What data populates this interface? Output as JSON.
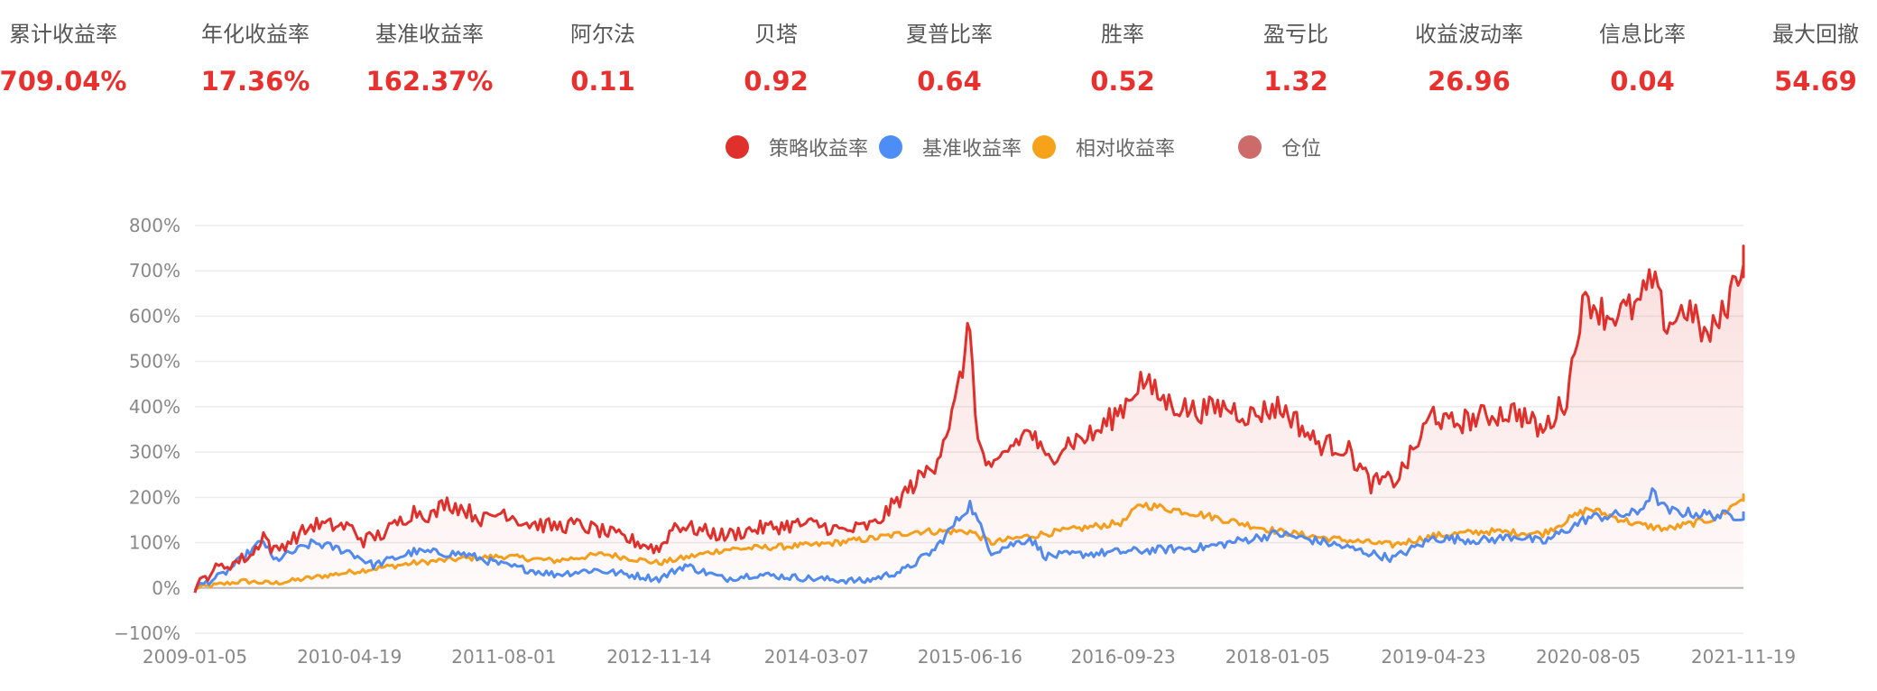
{
  "stats": [
    {
      "label": "累计收益率",
      "value": "709.04%"
    },
    {
      "label": "年化收益率",
      "value": "17.36%"
    },
    {
      "label": "基准收益率",
      "value": "162.37%"
    },
    {
      "label": "阿尔法",
      "value": "0.11"
    },
    {
      "label": "贝塔",
      "value": "0.92"
    },
    {
      "label": "夏普比率",
      "value": "0.64"
    },
    {
      "label": "胜率",
      "value": "0.52"
    },
    {
      "label": "盈亏比",
      "value": "1.32"
    },
    {
      "label": "收益波动率",
      "value": "26.96"
    },
    {
      "label": "信息比率",
      "value": "0.04"
    },
    {
      "label": "最大回撤",
      "value": "54.69"
    }
  ],
  "colors": {
    "stat_value": "#e8312f",
    "strategy": "#e0302c",
    "benchmark": "#4c8df6",
    "relative": "#f7a21b",
    "position": "#cd6b6b",
    "grid": "#ececec",
    "zero_axis": "#b8b8b8"
  },
  "chart_data": {
    "type": "line",
    "legend": [
      {
        "name": "策略收益率",
        "color_key": "strategy"
      },
      {
        "name": "基准收益率",
        "color_key": "benchmark"
      },
      {
        "name": "相对收益率",
        "color_key": "relative"
      },
      {
        "name": "仓位",
        "color_key": "position"
      }
    ],
    "x_ticks": [
      "2009-01-05",
      "2010-04-19",
      "2011-08-01",
      "2012-11-14",
      "2014-03-07",
      "2015-06-16",
      "2016-09-23",
      "2018-01-05",
      "2019-04-23",
      "2020-08-05",
      "2021-11-19"
    ],
    "y_ticks": [
      "800%",
      "700%",
      "600%",
      "500%",
      "400%",
      "300%",
      "200%",
      "100%",
      "0%",
      "−100%"
    ],
    "ylim": [
      -100,
      800
    ],
    "x_range": [
      "2009-01-05",
      "2021-11-19"
    ],
    "grid": true,
    "legend_position": "top-center",
    "series": [
      {
        "name": "策略收益率",
        "color_key": "strategy",
        "fill": true,
        "points": [
          [
            "2009-01-05",
            0
          ],
          [
            "2009-03-01",
            40
          ],
          [
            "2009-05-01",
            55
          ],
          [
            "2009-07-01",
            75
          ],
          [
            "2009-08-01",
            120
          ],
          [
            "2009-09-01",
            80
          ],
          [
            "2009-11-01",
            110
          ],
          [
            "2010-01-01",
            140
          ],
          [
            "2010-04-19",
            135
          ],
          [
            "2010-06-01",
            105
          ],
          [
            "2010-08-01",
            120
          ],
          [
            "2010-11-01",
            170
          ],
          [
            "2011-01-01",
            160
          ],
          [
            "2011-02-01",
            190
          ],
          [
            "2011-04-01",
            175
          ],
          [
            "2011-06-01",
            150
          ],
          [
            "2011-08-01",
            170
          ],
          [
            "2011-10-01",
            145
          ],
          [
            "2012-01-01",
            135
          ],
          [
            "2012-03-01",
            140
          ],
          [
            "2012-05-01",
            130
          ],
          [
            "2012-08-01",
            110
          ],
          [
            "2012-11-14",
            85
          ],
          [
            "2013-01-01",
            140
          ],
          [
            "2013-06-01",
            115
          ],
          [
            "2013-09-01",
            130
          ],
          [
            "2014-01-01",
            140
          ],
          [
            "2014-03-07",
            140
          ],
          [
            "2014-06-01",
            125
          ],
          [
            "2014-09-01",
            140
          ],
          [
            "2014-12-01",
            210
          ],
          [
            "2015-03-01",
            275
          ],
          [
            "2015-05-01",
            400
          ],
          [
            "2015-06-16",
            580
          ],
          [
            "2015-07-10",
            320
          ],
          [
            "2015-08-20",
            250
          ],
          [
            "2015-10-01",
            300
          ],
          [
            "2015-12-15",
            350
          ],
          [
            "2016-02-01",
            280
          ],
          [
            "2016-04-01",
            320
          ],
          [
            "2016-07-01",
            340
          ],
          [
            "2016-09-23",
            400
          ],
          [
            "2016-11-15",
            460
          ],
          [
            "2017-02-01",
            410
          ],
          [
            "2017-05-01",
            390
          ],
          [
            "2017-08-01",
            400
          ],
          [
            "2017-10-15",
            380
          ],
          [
            "2018-01-05",
            400
          ],
          [
            "2018-02-15",
            380
          ],
          [
            "2018-05-01",
            320
          ],
          [
            "2018-08-01",
            310
          ],
          [
            "2018-10-15",
            230
          ],
          [
            "2019-01-01",
            240
          ],
          [
            "2019-02-20",
            300
          ],
          [
            "2019-04-23",
            390
          ],
          [
            "2019-06-01",
            360
          ],
          [
            "2019-10-01",
            380
          ],
          [
            "2020-01-01",
            390
          ],
          [
            "2020-03-20",
            345
          ],
          [
            "2020-06-01",
            420
          ],
          [
            "2020-07-10",
            600
          ],
          [
            "2020-08-05",
            640
          ],
          [
            "2020-10-01",
            600
          ],
          [
            "2021-01-01",
            620
          ],
          [
            "2021-02-15",
            680
          ],
          [
            "2021-04-01",
            580
          ],
          [
            "2021-06-01",
            620
          ],
          [
            "2021-08-01",
            550
          ],
          [
            "2021-09-15",
            600
          ],
          [
            "2021-11-19",
            730
          ],
          [
            "2021-12-31",
            720
          ]
        ]
      },
      {
        "name": "基准收益率",
        "color_key": "benchmark",
        "fill": false,
        "points": [
          [
            "2009-01-05",
            0
          ],
          [
            "2009-04-01",
            30
          ],
          [
            "2009-08-01",
            105
          ],
          [
            "2009-09-01",
            60
          ],
          [
            "2010-01-01",
            100
          ],
          [
            "2010-04-19",
            80
          ],
          [
            "2010-07-01",
            50
          ],
          [
            "2010-11-01",
            80
          ],
          [
            "2011-04-01",
            75
          ],
          [
            "2011-08-01",
            50
          ],
          [
            "2012-01-01",
            30
          ],
          [
            "2012-05-01",
            40
          ],
          [
            "2012-11-14",
            20
          ],
          [
            "2013-02-01",
            50
          ],
          [
            "2013-06-01",
            20
          ],
          [
            "2013-09-01",
            30
          ],
          [
            "2014-03-07",
            20
          ],
          [
            "2014-08-01",
            15
          ],
          [
            "2014-12-01",
            40
          ],
          [
            "2015-03-01",
            85
          ],
          [
            "2015-06-16",
            185
          ],
          [
            "2015-08-20",
            80
          ],
          [
            "2015-12-15",
            110
          ],
          [
            "2016-02-01",
            70
          ],
          [
            "2016-09-23",
            80
          ],
          [
            "2017-06-01",
            90
          ],
          [
            "2018-01-05",
            120
          ],
          [
            "2018-06-01",
            100
          ],
          [
            "2018-12-20",
            65
          ],
          [
            "2019-04-23",
            110
          ],
          [
            "2019-10-01",
            105
          ],
          [
            "2020-01-01",
            115
          ],
          [
            "2020-03-20",
            100
          ],
          [
            "2020-08-05",
            155
          ],
          [
            "2021-01-01",
            165
          ],
          [
            "2021-02-15",
            210
          ],
          [
            "2021-04-01",
            170
          ],
          [
            "2021-09-01",
            160
          ],
          [
            "2021-12-31",
            160
          ]
        ]
      },
      {
        "name": "相对收益率",
        "color_key": "relative",
        "fill": false,
        "points": [
          [
            "2009-01-05",
            0
          ],
          [
            "2009-06-01",
            15
          ],
          [
            "2009-09-01",
            10
          ],
          [
            "2010-04-19",
            35
          ],
          [
            "2010-11-01",
            55
          ],
          [
            "2011-04-01",
            65
          ],
          [
            "2011-08-01",
            70
          ],
          [
            "2012-01-01",
            60
          ],
          [
            "2012-06-01",
            75
          ],
          [
            "2012-11-14",
            55
          ],
          [
            "2013-06-01",
            85
          ],
          [
            "2014-03-07",
            95
          ],
          [
            "2014-09-01",
            110
          ],
          [
            "2015-01-01",
            125
          ],
          [
            "2015-06-16",
            125
          ],
          [
            "2015-08-20",
            100
          ],
          [
            "2015-12-15",
            115
          ],
          [
            "2016-09-23",
            145
          ],
          [
            "2016-11-15",
            185
          ],
          [
            "2017-05-01",
            165
          ],
          [
            "2018-01-05",
            125
          ],
          [
            "2018-06-01",
            110
          ],
          [
            "2018-12-20",
            95
          ],
          [
            "2019-04-23",
            115
          ],
          [
            "2019-10-01",
            125
          ],
          [
            "2020-03-20",
            120
          ],
          [
            "2020-08-05",
            175
          ],
          [
            "2021-01-01",
            140
          ],
          [
            "2021-04-01",
            130
          ],
          [
            "2021-09-01",
            155
          ],
          [
            "2021-11-19",
            200
          ],
          [
            "2021-12-31",
            195
          ]
        ]
      }
    ]
  }
}
